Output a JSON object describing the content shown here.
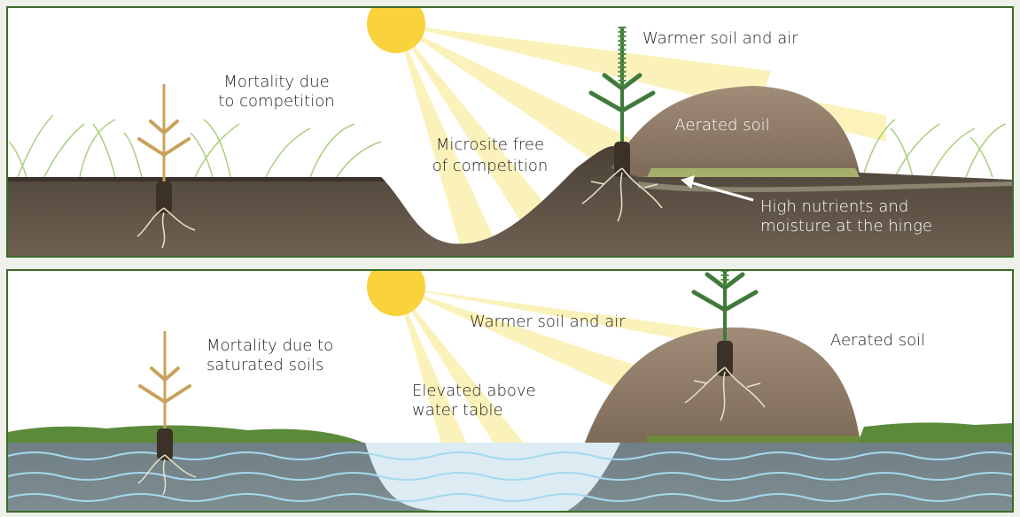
{
  "panels": [
    {
      "labels": [
        {
          "lines": [
            "Mortality due",
            "to competition"
          ]
        },
        {
          "lines": [
            "Microsite free",
            "of competition"
          ]
        },
        {
          "lines": [
            "Warmer soil and air"
          ]
        },
        {
          "lines": [
            "Aerated soil"
          ]
        },
        {
          "lines": [
            "High nutrients and",
            "moisture at the hinge"
          ]
        }
      ]
    },
    {
      "labels": [
        {
          "lines": [
            "Mortality due to",
            "saturated soils"
          ]
        },
        {
          "lines": [
            "Elevated above",
            "water table"
          ]
        },
        {
          "lines": [
            "Warmer soil and air"
          ]
        },
        {
          "lines": [
            "Aerated soil"
          ]
        }
      ]
    }
  ]
}
